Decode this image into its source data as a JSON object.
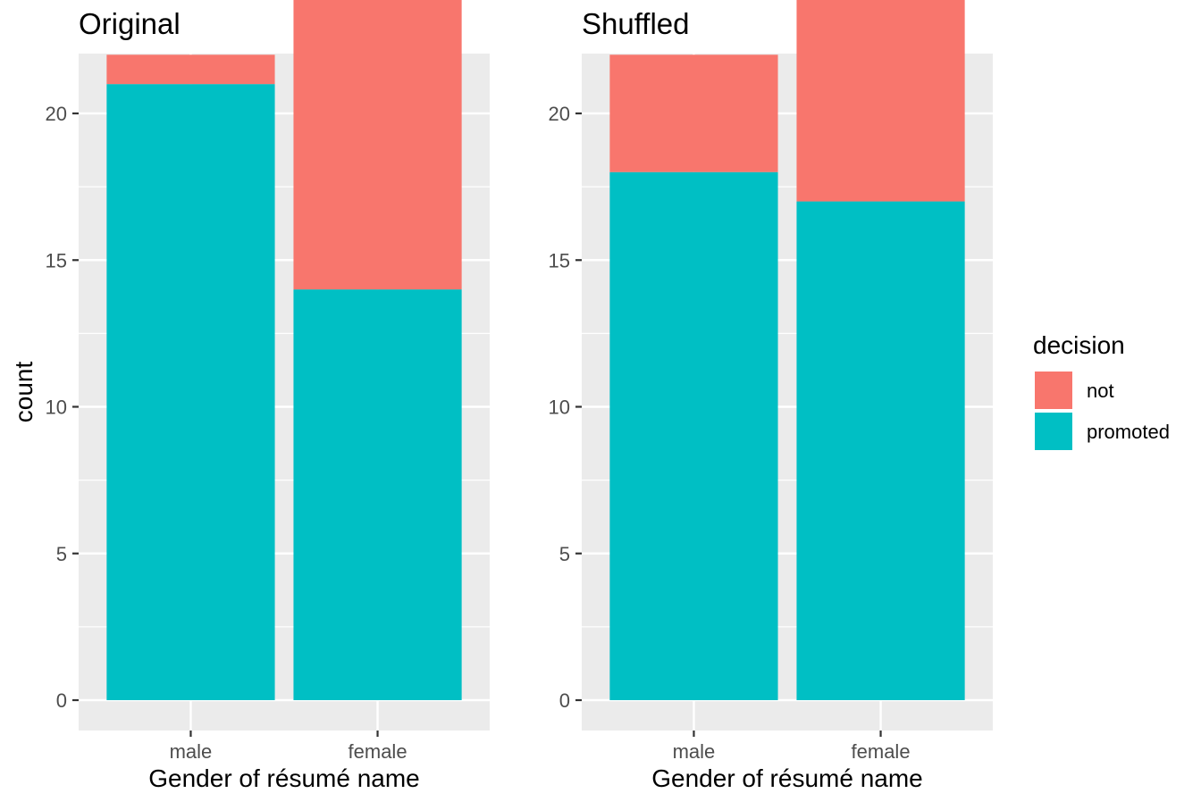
{
  "chart_data": [
    {
      "type": "bar",
      "stacked": true,
      "title": "Original",
      "xlabel": "Gender of résumé name",
      "ylabel": "count",
      "categories": [
        "male",
        "female"
      ],
      "series": [
        {
          "name": "promoted",
          "values": [
            21,
            14
          ]
        },
        {
          "name": "not",
          "values": [
            1,
            10
          ]
        }
      ],
      "ylim": [
        0,
        22
      ],
      "yticks": [
        0,
        5,
        10,
        15,
        20
      ],
      "grid": true
    },
    {
      "type": "bar",
      "stacked": true,
      "title": "Shuffled",
      "xlabel": "Gender of résumé name",
      "ylabel": "",
      "categories": [
        "male",
        "female"
      ],
      "series": [
        {
          "name": "promoted",
          "values": [
            18,
            17
          ]
        },
        {
          "name": "not",
          "values": [
            4,
            7
          ]
        }
      ],
      "ylim": [
        0,
        22
      ],
      "yticks": [
        0,
        5,
        10,
        15,
        20
      ],
      "grid": true
    }
  ],
  "legend": {
    "title": "decision",
    "position": "right",
    "items": [
      {
        "label": "not",
        "color": "#F8766D"
      },
      {
        "label": "promoted",
        "color": "#00BFC4"
      }
    ]
  },
  "colors": {
    "not": "#F8766D",
    "promoted": "#00BFC4",
    "panel_background": "#EBEBEB",
    "gridline": "#FFFFFF"
  }
}
